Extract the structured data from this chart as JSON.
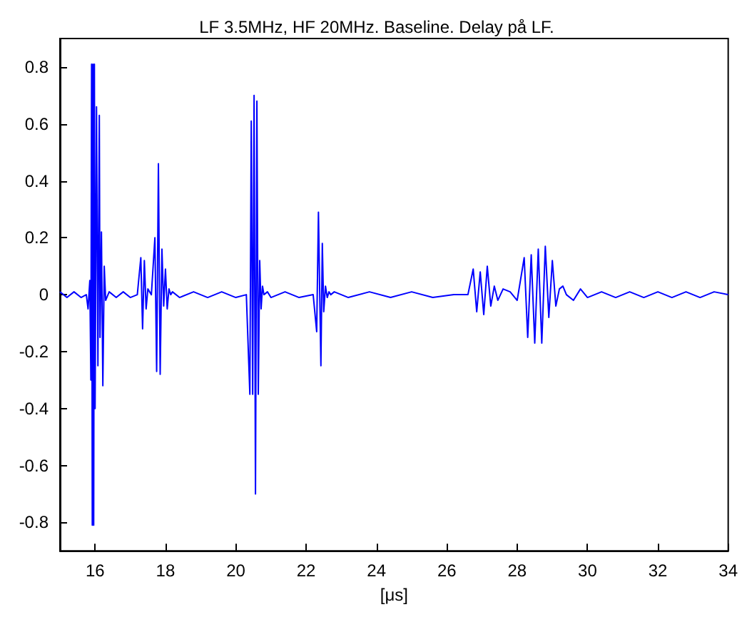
{
  "chart_data": {
    "type": "line",
    "title": "LF 3.5MHz, HF 20MHz. Baseline. Delay på LF.",
    "xlabel": "[μs]",
    "xlim": [
      15,
      34
    ],
    "xticks": [
      16,
      18,
      20,
      22,
      24,
      26,
      28,
      30,
      32,
      34
    ],
    "ylim": [
      -0.9,
      0.9
    ],
    "yticks": [
      -0.8,
      -0.6,
      -0.4,
      -0.2,
      0,
      0.2,
      0.4,
      0.6,
      0.8
    ],
    "grid": false,
    "marker": "none",
    "line_style": "solid",
    "series": [
      {
        "color": "#0000ff",
        "x": [
          15,
          15.2,
          15.4,
          15.6,
          15.75,
          15.8,
          15.85,
          15.88,
          15.9,
          15.92,
          15.94,
          15.96,
          15.98,
          16.0,
          16.04,
          16.08,
          16.12,
          16.14,
          16.18,
          16.22,
          16.26,
          16.3,
          16.4,
          16.6,
          16.8,
          17.0,
          17.2,
          17.3,
          17.35,
          17.4,
          17.45,
          17.5,
          17.6,
          17.7,
          17.75,
          17.8,
          17.85,
          17.9,
          17.95,
          18.0,
          18.05,
          18.1,
          18.15,
          18.2,
          18.4,
          18.8,
          19.2,
          19.6,
          20.0,
          20.3,
          20.4,
          20.44,
          20.48,
          20.52,
          20.56,
          20.6,
          20.64,
          20.68,
          20.72,
          20.76,
          20.8,
          20.9,
          21.0,
          21.4,
          21.8,
          22.2,
          22.3,
          22.35,
          22.42,
          22.46,
          22.5,
          22.55,
          22.6,
          22.65,
          22.7,
          22.8,
          23.2,
          23.8,
          24.4,
          25.0,
          25.6,
          26.2,
          26.6,
          26.75,
          26.85,
          26.95,
          27.05,
          27.15,
          27.25,
          27.35,
          27.45,
          27.6,
          27.8,
          28.0,
          28.2,
          28.3,
          28.4,
          28.5,
          28.6,
          28.7,
          28.8,
          28.9,
          29.0,
          29.1,
          29.2,
          29.3,
          29.4,
          29.6,
          29.8,
          30.0,
          30.4,
          30.8,
          31.2,
          31.6,
          32.0,
          32.4,
          32.8,
          33.2,
          33.6,
          34.0
        ],
        "values": [
          0.01,
          -0.01,
          0.01,
          -0.01,
          0.0,
          -0.05,
          0.05,
          -0.3,
          0.81,
          -0.81,
          0.81,
          -0.81,
          0.81,
          -0.4,
          0.66,
          -0.25,
          0.63,
          -0.15,
          0.22,
          -0.32,
          0.1,
          -0.02,
          0.01,
          -0.01,
          0.01,
          -0.01,
          0.0,
          0.13,
          -0.12,
          0.12,
          -0.05,
          0.02,
          0.0,
          0.2,
          -0.27,
          0.46,
          -0.28,
          0.16,
          -0.04,
          0.09,
          -0.05,
          0.02,
          0.0,
          0.01,
          -0.01,
          0.01,
          -0.01,
          0.01,
          -0.01,
          0.0,
          -0.35,
          0.61,
          -0.35,
          0.7,
          -0.7,
          0.68,
          -0.35,
          0.12,
          -0.05,
          0.03,
          0.0,
          0.01,
          -0.01,
          0.01,
          -0.01,
          0.0,
          -0.13,
          0.29,
          -0.25,
          0.18,
          -0.06,
          0.03,
          -0.01,
          0.01,
          0.0,
          0.01,
          -0.01,
          0.01,
          -0.01,
          0.01,
          -0.01,
          0.0,
          0.0,
          0.09,
          -0.06,
          0.08,
          -0.07,
          0.1,
          -0.04,
          0.03,
          -0.02,
          0.02,
          0.01,
          -0.02,
          0.13,
          -0.15,
          0.14,
          -0.17,
          0.16,
          -0.17,
          0.17,
          -0.08,
          0.12,
          -0.04,
          0.02,
          0.03,
          0.0,
          -0.02,
          0.02,
          -0.01,
          0.01,
          -0.01,
          0.01,
          -0.01,
          0.01,
          -0.01,
          0.01,
          -0.01,
          0.01,
          0.0
        ]
      }
    ]
  }
}
